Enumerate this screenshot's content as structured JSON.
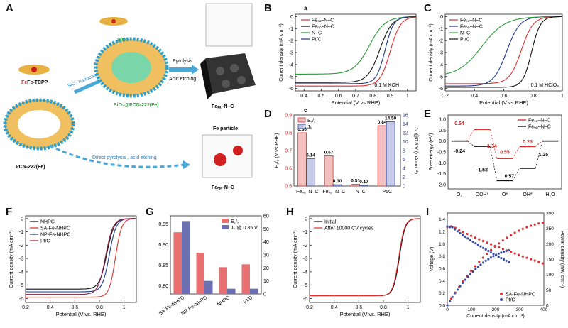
{
  "panels": {
    "A": {
      "letter": "A",
      "labels": {
        "fe_tcpp": "Fe-TCPP",
        "sio2": "SiO₂",
        "sio2_pcn": "SiO₂@PCN-222(Fe)",
        "pcn": "PCN-222(Fe)",
        "nanocasting": "SiO₂ nanocasting",
        "pyrolysis": "Pyrolysis",
        "acid_etching": "Acid etching",
        "direct": "Direct pyrolysis , acid etching",
        "fesa": "Feₛₐ–N–C",
        "fenp": "Feₙₚ–N–C",
        "fe_particle": "Fe particle"
      }
    },
    "B": {
      "letter": "B",
      "sublabel": "a",
      "condition": "0.1 M KOH"
    },
    "C": {
      "letter": "C",
      "condition": "0.1 M HClO₄"
    },
    "D": {
      "letter": "D",
      "sublabel": "c"
    },
    "E": {
      "letter": "E"
    },
    "F": {
      "letter": "F"
    },
    "G": {
      "letter": "G"
    },
    "H": {
      "letter": "H"
    },
    "I": {
      "letter": "I"
    }
  },
  "chart_data": [
    {
      "id": "B",
      "type": "line",
      "xlabel": "Potential (V vs RHE)",
      "ylabel": "Current density (mA cm⁻²)",
      "xlim": [
        0.35,
        1.05
      ],
      "ylim": [
        -6.2,
        0.2
      ],
      "xticks": [
        0.4,
        0.5,
        0.6,
        0.7,
        0.8,
        0.9,
        1.0
      ],
      "yticks": [
        0,
        -1,
        -2,
        -3,
        -4,
        -5,
        -6
      ],
      "series": [
        {
          "name": "Feₛₐ–N–C",
          "color": "#e03030",
          "jl": -5.8,
          "e12": 0.9,
          "k": 0.03
        },
        {
          "name": "Feₙₚ–N–C",
          "color": "#111111",
          "jl": -5.5,
          "e12": 0.84,
          "k": 0.035
        },
        {
          "name": "N–C",
          "color": "#2a9a3a",
          "jl": -4.8,
          "e12": 0.78,
          "k": 0.045
        },
        {
          "name": "Pt/C",
          "color": "#1d3a8a",
          "jl": -5.6,
          "e12": 0.87,
          "k": 0.025
        }
      ]
    },
    {
      "id": "C",
      "type": "line",
      "xlabel": "Potential (V vs RHE)",
      "ylabel": "Current density (mA cm⁻²)",
      "xlim": [
        0.2,
        1.0
      ],
      "ylim": [
        -6.2,
        0.2
      ],
      "xticks": [
        0.2,
        0.4,
        0.6,
        0.8,
        1.0
      ],
      "yticks": [
        0,
        -1,
        -2,
        -3,
        -4,
        -5,
        -6
      ],
      "series": [
        {
          "name": "Feₛₐ–N–C",
          "color": "#e03030",
          "jl": -5.6,
          "e12": 0.72,
          "k": 0.04
        },
        {
          "name": "Feₙₚ–N–C",
          "color": "#1d3a8a",
          "jl": -5.8,
          "e12": 0.62,
          "k": 0.045
        },
        {
          "name": "N–C",
          "color": "#2a9a3a",
          "jl": -5.0,
          "e12": 0.45,
          "k": 0.08
        },
        {
          "name": "Pt/C",
          "color": "#111111",
          "jl": -5.9,
          "e12": 0.79,
          "k": 0.03
        }
      ]
    },
    {
      "id": "D",
      "type": "bar",
      "categories": [
        "Feₛₐ–N–C",
        "Feₙₚ–N–C",
        "N–C",
        "Pt/C"
      ],
      "ylabel": "E₁/₂ (V vs RHE)",
      "y2label": "Jₖ @0.8 V (mA cm⁻²)",
      "ylim": [
        0.5,
        0.9
      ],
      "y2lim": [
        0,
        16
      ],
      "yticks": [
        0.5,
        0.6,
        0.7,
        0.8,
        0.9
      ],
      "y2ticks": [
        0,
        2,
        4,
        6,
        8,
        10,
        12,
        14,
        16
      ],
      "series": [
        {
          "name": "E₁/₂",
          "color": "#e03030",
          "values": [
            0.8,
            0.67,
            0.51,
            0.84
          ],
          "labels": [
            "0.80",
            "0.67",
            "0.51",
            "0.84"
          ]
        },
        {
          "name": "Jₖ",
          "color": "#2c3e9a",
          "values": [
            6.14,
            0.3,
            0.17,
            14.5
          ],
          "labels": [
            "6.14",
            "0.30",
            "0.17",
            "14.50"
          ]
        }
      ]
    },
    {
      "id": "E",
      "type": "line",
      "ylabel": "Free energy (eV)",
      "ylim": [
        -2.2,
        1.2
      ],
      "yticks": [
        1.0,
        0.5,
        0.0,
        -0.5,
        -1.0,
        -1.5,
        -2.0
      ],
      "categories": [
        "O₂",
        "OOH*",
        "O*",
        "OH*",
        "H₂O"
      ],
      "series": [
        {
          "name": "Feₛₐ–N–C",
          "color": "#e03030",
          "values": [
            0,
            0.54,
            -0.8,
            -0.25,
            0
          ]
        },
        {
          "name": "Feₙₚ–N–C",
          "color": "#111111",
          "values": [
            0,
            -0.24,
            -1.82,
            -1.25,
            0
          ]
        }
      ],
      "annotations": [
        "0.54",
        "-1.34",
        "0.55",
        "0.25",
        "-0.24",
        "-1.58",
        "0.57",
        "1.25"
      ]
    },
    {
      "id": "F",
      "type": "line",
      "xlabel": "Potential (V vs. RHE)",
      "ylabel": "Current density (mA cm⁻²)",
      "xlim": [
        0.2,
        1.1
      ],
      "ylim": [
        -6.3,
        0.2
      ],
      "xticks": [
        0.2,
        0.4,
        0.6,
        0.8,
        1.0
      ],
      "yticks": [
        0,
        -1,
        -2,
        -3,
        -4,
        -5,
        -6
      ],
      "series": [
        {
          "name": "NHPC",
          "color": "#111111",
          "jl": -5.3,
          "e12": 0.86,
          "k": 0.03
        },
        {
          "name": "SA-Fe-NHPC",
          "color": "#e03030",
          "jl": -5.9,
          "e12": 0.93,
          "k": 0.025
        },
        {
          "name": "NP-Fe-NHPC",
          "color": "#1d3a8a",
          "jl": -5.5,
          "e12": 0.88,
          "k": 0.028
        },
        {
          "name": "Pt/C",
          "color": "#8a1a4a",
          "jl": -5.7,
          "e12": 0.85,
          "k": 0.03
        }
      ]
    },
    {
      "id": "G",
      "type": "bar",
      "categories": [
        "SA-Fe-NHPC",
        "NP-Fe-NHPC",
        "NHPC",
        "Pt/C"
      ],
      "ylim": [
        0.78,
        0.97
      ],
      "y2lim": [
        0,
        60
      ],
      "yticks": [
        0.8,
        0.85,
        0.9,
        0.95
      ],
      "y2ticks": [
        0,
        10,
        20,
        30,
        40,
        50,
        60
      ],
      "series": [
        {
          "name": "E₁/₂",
          "color": "#e87070",
          "values": [
            0.93,
            0.88,
            0.845,
            0.852
          ]
        },
        {
          "name": "Jₖ @ 0.85 V",
          "color": "#6a70b0",
          "values": [
            56,
            10,
            4,
            4
          ]
        }
      ]
    },
    {
      "id": "H",
      "type": "line",
      "xlabel": "Potential (V vs. RHE)",
      "ylabel": "Current density (mA cm⁻²)",
      "xlim": [
        0.2,
        1.1
      ],
      "ylim": [
        -6.3,
        0.2
      ],
      "xticks": [
        0.2,
        0.4,
        0.6,
        0.8,
        1.0
      ],
      "yticks": [
        0,
        -1,
        -2,
        -3,
        -4,
        -5,
        -6
      ],
      "series": [
        {
          "name": "Initial",
          "color": "#111111",
          "jl": -5.8,
          "e12": 0.93,
          "k": 0.024
        },
        {
          "name": "After 10000 CV cycles",
          "color": "#e03030",
          "jl": -5.8,
          "e12": 0.925,
          "k": 0.024
        }
      ]
    },
    {
      "id": "I",
      "type": "scatter",
      "xlabel": "Current density (mA cm⁻²)",
      "ylabel": "Voltage (V)",
      "y2label": "Power density (mW cm⁻²)",
      "xlim": [
        0,
        400
      ],
      "ylim": [
        0,
        1.5
      ],
      "y2lim": [
        0,
        300
      ],
      "xticks": [
        0,
        100,
        200,
        300,
        400
      ],
      "yticks": [
        0.0,
        0.2,
        0.4,
        0.6,
        0.8,
        1.0,
        1.2,
        1.4
      ],
      "y2ticks": [
        0,
        50,
        100,
        150,
        200,
        250,
        300
      ],
      "series": [
        {
          "name": "SA-Fe-NHPC",
          "color": "#e03030",
          "xmax": 395,
          "v0": 1.35,
          "v1": 0.68
        },
        {
          "name": "Pt/C",
          "color": "#3a4fa0",
          "xmax": 255,
          "v0": 1.36,
          "v1": 0.7
        }
      ]
    }
  ]
}
